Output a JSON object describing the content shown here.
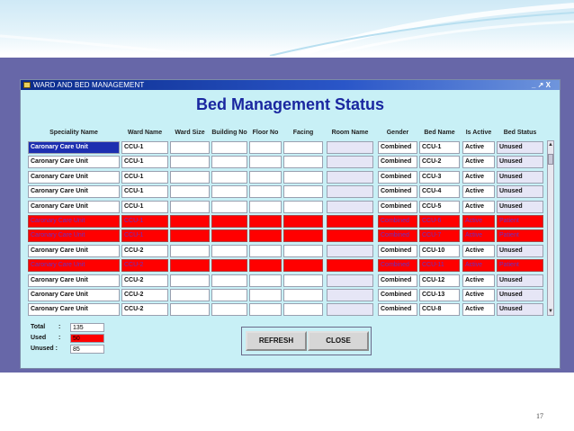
{
  "window": {
    "title": "WARD AND BED MANAGEMENT",
    "controls": "_ ↗ X",
    "heading": "Bed Management Status"
  },
  "columns": [
    "Speciality Name",
    "Ward Name",
    "Ward Size",
    "Building No",
    "Floor No",
    "Facing",
    "Room Name",
    "Gender",
    "Bed Name",
    "Is Active",
    "Bed Status"
  ],
  "rows": [
    {
      "speciality": "Caronary Care Unit",
      "ward": "CCU-1",
      "gender": "Combined",
      "bed": "CCU-1",
      "active": "Active",
      "status": "Unused",
      "state": "selected"
    },
    {
      "speciality": "Caronary Care Unit",
      "ward": "CCU-1",
      "gender": "Combined",
      "bed": "CCU-2",
      "active": "Active",
      "status": "Unused",
      "state": "normal"
    },
    {
      "speciality": "Caronary Care Unit",
      "ward": "CCU-1",
      "gender": "Combined",
      "bed": "CCU-3",
      "active": "Active",
      "status": "Unused",
      "state": "normal"
    },
    {
      "speciality": "Caronary Care Unit",
      "ward": "CCU-1",
      "gender": "Combined",
      "bed": "CCU-4",
      "active": "Active",
      "status": "Unused",
      "state": "normal"
    },
    {
      "speciality": "Caronary Care Unit",
      "ward": "CCU-1",
      "gender": "Combined",
      "bed": "CCU-5",
      "active": "Active",
      "status": "Unused",
      "state": "normal"
    },
    {
      "speciality": "Caronary Care Unit",
      "ward": "CCU-1",
      "gender": "Combined",
      "bed": "CCU-6",
      "active": "Active",
      "status": "Patient",
      "state": "used"
    },
    {
      "speciality": "Caronary Care Unit",
      "ward": "CCU-1",
      "gender": "Combined",
      "bed": "CCU-7",
      "active": "Active",
      "status": "Patient",
      "state": "used"
    },
    {
      "speciality": "Caronary Care Unit",
      "ward": "CCU-2",
      "gender": "Combined",
      "bed": "CCU-10",
      "active": "Active",
      "status": "Unused",
      "state": "normal"
    },
    {
      "speciality": "Caronary Care Unit",
      "ward": "CCU-2",
      "gender": "Combined",
      "bed": "CCU-11",
      "active": "Active",
      "status": "Patient",
      "state": "used"
    },
    {
      "speciality": "Caronary Care Unit",
      "ward": "CCU-2",
      "gender": "Combined",
      "bed": "CCU-12",
      "active": "Active",
      "status": "Unused",
      "state": "normal"
    },
    {
      "speciality": "Caronary Care Unit",
      "ward": "CCU-2",
      "gender": "Combined",
      "bed": "CCU-13",
      "active": "Active",
      "status": "Unused",
      "state": "normal"
    },
    {
      "speciality": "Caronary Care Unit",
      "ward": "CCU-2",
      "gender": "Combined",
      "bed": "CCU-8",
      "active": "Active",
      "status": "Unused",
      "state": "normal"
    }
  ],
  "summary": [
    {
      "label": "Total",
      "value": "135",
      "color": "#ffffff"
    },
    {
      "label": "Used",
      "value": "50",
      "color": "#ff0000"
    },
    {
      "label": "Unused :",
      "value": "85",
      "color": "#ffffff"
    }
  ],
  "buttons": {
    "refresh": "REFRESH",
    "close": "CLOSE"
  },
  "page_number": "17",
  "colors": {
    "used_row": "#ff0000",
    "selected": "#1d2fb0",
    "window_bg": "#c8f0f6",
    "frame": "#6767a8",
    "heading": "#1a27a0"
  }
}
